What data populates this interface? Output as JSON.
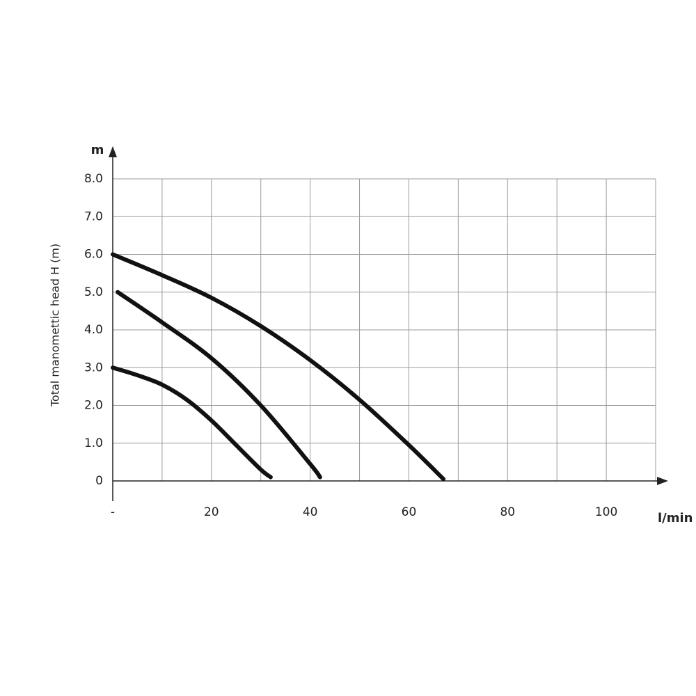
{
  "chart_data": {
    "type": "line",
    "y_title": "Total manomettic head H (m)",
    "y_unit": "m",
    "x_unit": "l/min",
    "xlim": [
      0,
      110
    ],
    "xticks": [
      {
        "value": 0,
        "label": "-"
      },
      20,
      40,
      60,
      80,
      100
    ],
    "xminor": [
      10,
      30,
      50,
      70,
      90,
      110
    ],
    "ylim": [
      0,
      8
    ],
    "yticks": [
      0,
      {
        "value": 1,
        "label": "1.0"
      },
      {
        "value": 2,
        "label": "2.0"
      },
      {
        "value": 3,
        "label": "3.0"
      },
      {
        "value": 4,
        "label": "4.0"
      },
      {
        "value": 5,
        "label": "5.0"
      },
      {
        "value": 6,
        "label": "6.0"
      },
      {
        "value": 7,
        "label": "7.0"
      },
      {
        "value": 8,
        "label": "8.0"
      }
    ],
    "grid": true,
    "series": [
      {
        "color": "#111111",
        "x": [
          0,
          5,
          10,
          15,
          20,
          25,
          30,
          32
        ],
        "values": [
          3.0,
          2.8,
          2.55,
          2.15,
          1.6,
          0.95,
          0.3,
          0.1
        ]
      },
      {
        "color": "#111111",
        "x": [
          1,
          10,
          20,
          30,
          40,
          42
        ],
        "values": [
          5.0,
          4.2,
          3.25,
          2.0,
          0.45,
          0.1
        ]
      },
      {
        "color": "#111111",
        "x": [
          0,
          10,
          20,
          30,
          40,
          50,
          60,
          67
        ],
        "values": [
          6.0,
          5.45,
          4.85,
          4.1,
          3.2,
          2.15,
          0.95,
          0.05
        ]
      }
    ]
  }
}
